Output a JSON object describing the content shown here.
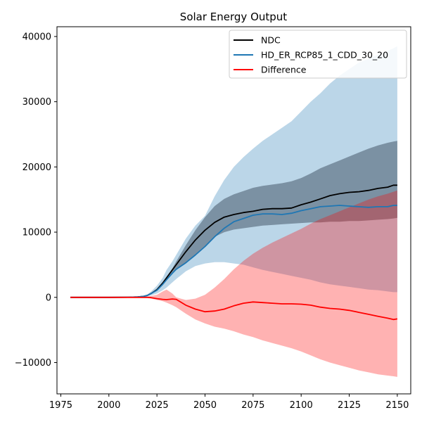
{
  "chart_data": {
    "type": "line",
    "title": "Solar Energy Output",
    "xlabel": "",
    "ylabel": "",
    "xlim": [
      1973,
      2157
    ],
    "ylim": [
      -14800,
      41500
    ],
    "x_ticks": [
      1975,
      2000,
      2025,
      2050,
      2075,
      2100,
      2125,
      2150
    ],
    "y_ticks": [
      -10000,
      0,
      10000,
      20000,
      30000,
      40000
    ],
    "grid": false,
    "legend_position": "top-right",
    "colors": {
      "ndc": "#000000",
      "hd": "#1f77b4",
      "diff": "#ff0000",
      "hd_band": "#1f77b4",
      "ndc_band": "#2f3f4f",
      "diff_band": "#ff0000"
    },
    "x": [
      1980,
      1990,
      2000,
      2010,
      2015,
      2018,
      2020,
      2022,
      2025,
      2028,
      2030,
      2033,
      2035,
      2040,
      2045,
      2050,
      2055,
      2060,
      2065,
      2070,
      2075,
      2080,
      2085,
      2090,
      2095,
      2100,
      2105,
      2110,
      2115,
      2120,
      2125,
      2130,
      2135,
      2140,
      2145,
      2148,
      2150
    ],
    "series": [
      {
        "name": "NDC",
        "color": "#000000",
        "values": [
          0,
          0,
          0,
          20,
          60,
          150,
          300,
          600,
          1200,
          2200,
          3000,
          4200,
          5000,
          7000,
          8800,
          10300,
          11500,
          12300,
          12700,
          13000,
          13200,
          13500,
          13600,
          13600,
          13700,
          14200,
          14600,
          15100,
          15600,
          15900,
          16100,
          16200,
          16400,
          16700,
          16900,
          17200,
          17200
        ]
      },
      {
        "name": "HD_ER_RCP85_1_CDD_30_20",
        "color": "#1f77b4",
        "values": [
          0,
          0,
          0,
          20,
          60,
          150,
          300,
          600,
          1100,
          2000,
          2700,
          3700,
          4300,
          5300,
          6500,
          7800,
          9300,
          10600,
          11600,
          12100,
          12600,
          12800,
          12800,
          12700,
          12900,
          13300,
          13600,
          13900,
          14000,
          14100,
          14000,
          13900,
          13800,
          13900,
          13900,
          14100,
          14100
        ]
      },
      {
        "name": "Difference",
        "color": "#ff0000",
        "values": [
          0,
          0,
          0,
          0,
          0,
          0,
          0,
          -50,
          -200,
          -300,
          -350,
          -250,
          -300,
          -1200,
          -1800,
          -2200,
          -2100,
          -1800,
          -1300,
          -900,
          -700,
          -800,
          -900,
          -1000,
          -1000,
          -1050,
          -1200,
          -1500,
          -1700,
          -1800,
          -2000,
          -2300,
          -2600,
          -2900,
          -3200,
          -3400,
          -3300
        ]
      }
    ],
    "bands": [
      {
        "for": "HD_ER_RCP85_1_CDD_30_20",
        "color": "#1f77b4",
        "lower": [
          0,
          0,
          0,
          10,
          30,
          80,
          150,
          300,
          600,
          1100,
          1500,
          2300,
          2800,
          4000,
          4800,
          5200,
          5400,
          5400,
          5200,
          5000,
          4600,
          4200,
          3900,
          3600,
          3300,
          3000,
          2700,
          2300,
          2000,
          1800,
          1600,
          1400,
          1200,
          1100,
          900,
          800,
          800
        ],
        "upper": [
          0,
          0,
          0,
          30,
          100,
          250,
          450,
          900,
          1800,
          3000,
          4200,
          5500,
          6500,
          9000,
          11000,
          12500,
          15500,
          18000,
          20000,
          21500,
          22800,
          24000,
          25000,
          26000,
          27000,
          28500,
          30000,
          31300,
          32800,
          34000,
          35000,
          36000,
          36600,
          37200,
          37800,
          38200,
          38500
        ]
      },
      {
        "for": "NDC",
        "color": "#2f3f4f",
        "lower": [
          0,
          0,
          0,
          20,
          60,
          150,
          300,
          600,
          1100,
          2000,
          2700,
          3700,
          4300,
          5300,
          6500,
          7800,
          9300,
          10000,
          10400,
          10600,
          10800,
          11000,
          11100,
          11200,
          11300,
          11400,
          11500,
          11500,
          11600,
          11600,
          11700,
          11700,
          11800,
          11900,
          12000,
          12100,
          12200
        ],
        "upper": [
          0,
          0,
          0,
          20,
          60,
          150,
          300,
          600,
          1200,
          2200,
          3000,
          4400,
          5500,
          8000,
          10300,
          12300,
          14000,
          15100,
          15800,
          16300,
          16800,
          17100,
          17300,
          17500,
          17800,
          18300,
          19000,
          19800,
          20400,
          21000,
          21600,
          22200,
          22800,
          23300,
          23700,
          23900,
          24000
        ]
      },
      {
        "for": "Difference",
        "color": "#ff0000",
        "lower": [
          0,
          0,
          0,
          0,
          -20,
          -50,
          -80,
          -200,
          -400,
          -600,
          -800,
          -1200,
          -1500,
          -2500,
          -3400,
          -4000,
          -4500,
          -4800,
          -5200,
          -5700,
          -6100,
          -6600,
          -7000,
          -7400,
          -7800,
          -8300,
          -8900,
          -9500,
          -10000,
          -10400,
          -10800,
          -11200,
          -11500,
          -11800,
          -12000,
          -12100,
          -12200
        ],
        "upper": [
          0,
          0,
          0,
          20,
          60,
          120,
          150,
          200,
          400,
          900,
          1200,
          600,
          0,
          -400,
          -200,
          400,
          1500,
          2800,
          4300,
          5600,
          6700,
          7600,
          8400,
          9100,
          9800,
          10500,
          11300,
          12000,
          12600,
          13200,
          13800,
          14400,
          15000,
          15500,
          15900,
          16200,
          16400
        ]
      }
    ]
  }
}
